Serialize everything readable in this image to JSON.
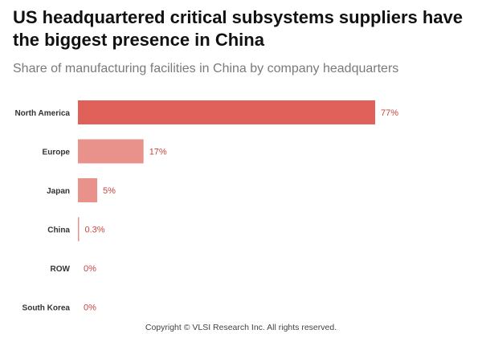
{
  "title": "US headquartered critical subsystems suppliers have the biggest presence in China",
  "subtitle": "Share of manufacturing facilities in China by company headquarters",
  "copyright": "Copyright © VLSI Research Inc.  All rights reserved.",
  "colors": {
    "primary_bar": "#e0605a",
    "secondary_bar": "#e8928b",
    "value_text": "#c8453e",
    "axis_line": "#cccccc"
  },
  "chart_data": {
    "type": "bar",
    "orientation": "horizontal",
    "title": "US headquartered critical subsystems suppliers have the biggest presence in China",
    "subtitle": "Share of manufacturing facilities in China by company headquarters",
    "categories": [
      "North America",
      "Europe",
      "Japan",
      "China",
      "ROW",
      "South Korea"
    ],
    "values": [
      77,
      17,
      5,
      0.3,
      0,
      0
    ],
    "value_labels": [
      "77%",
      "17%",
      "5%",
      "0.3%",
      "0%",
      "0%"
    ],
    "xlim": [
      0,
      100
    ],
    "xlabel": "",
    "ylabel": "",
    "grid": false,
    "legend": "none"
  }
}
